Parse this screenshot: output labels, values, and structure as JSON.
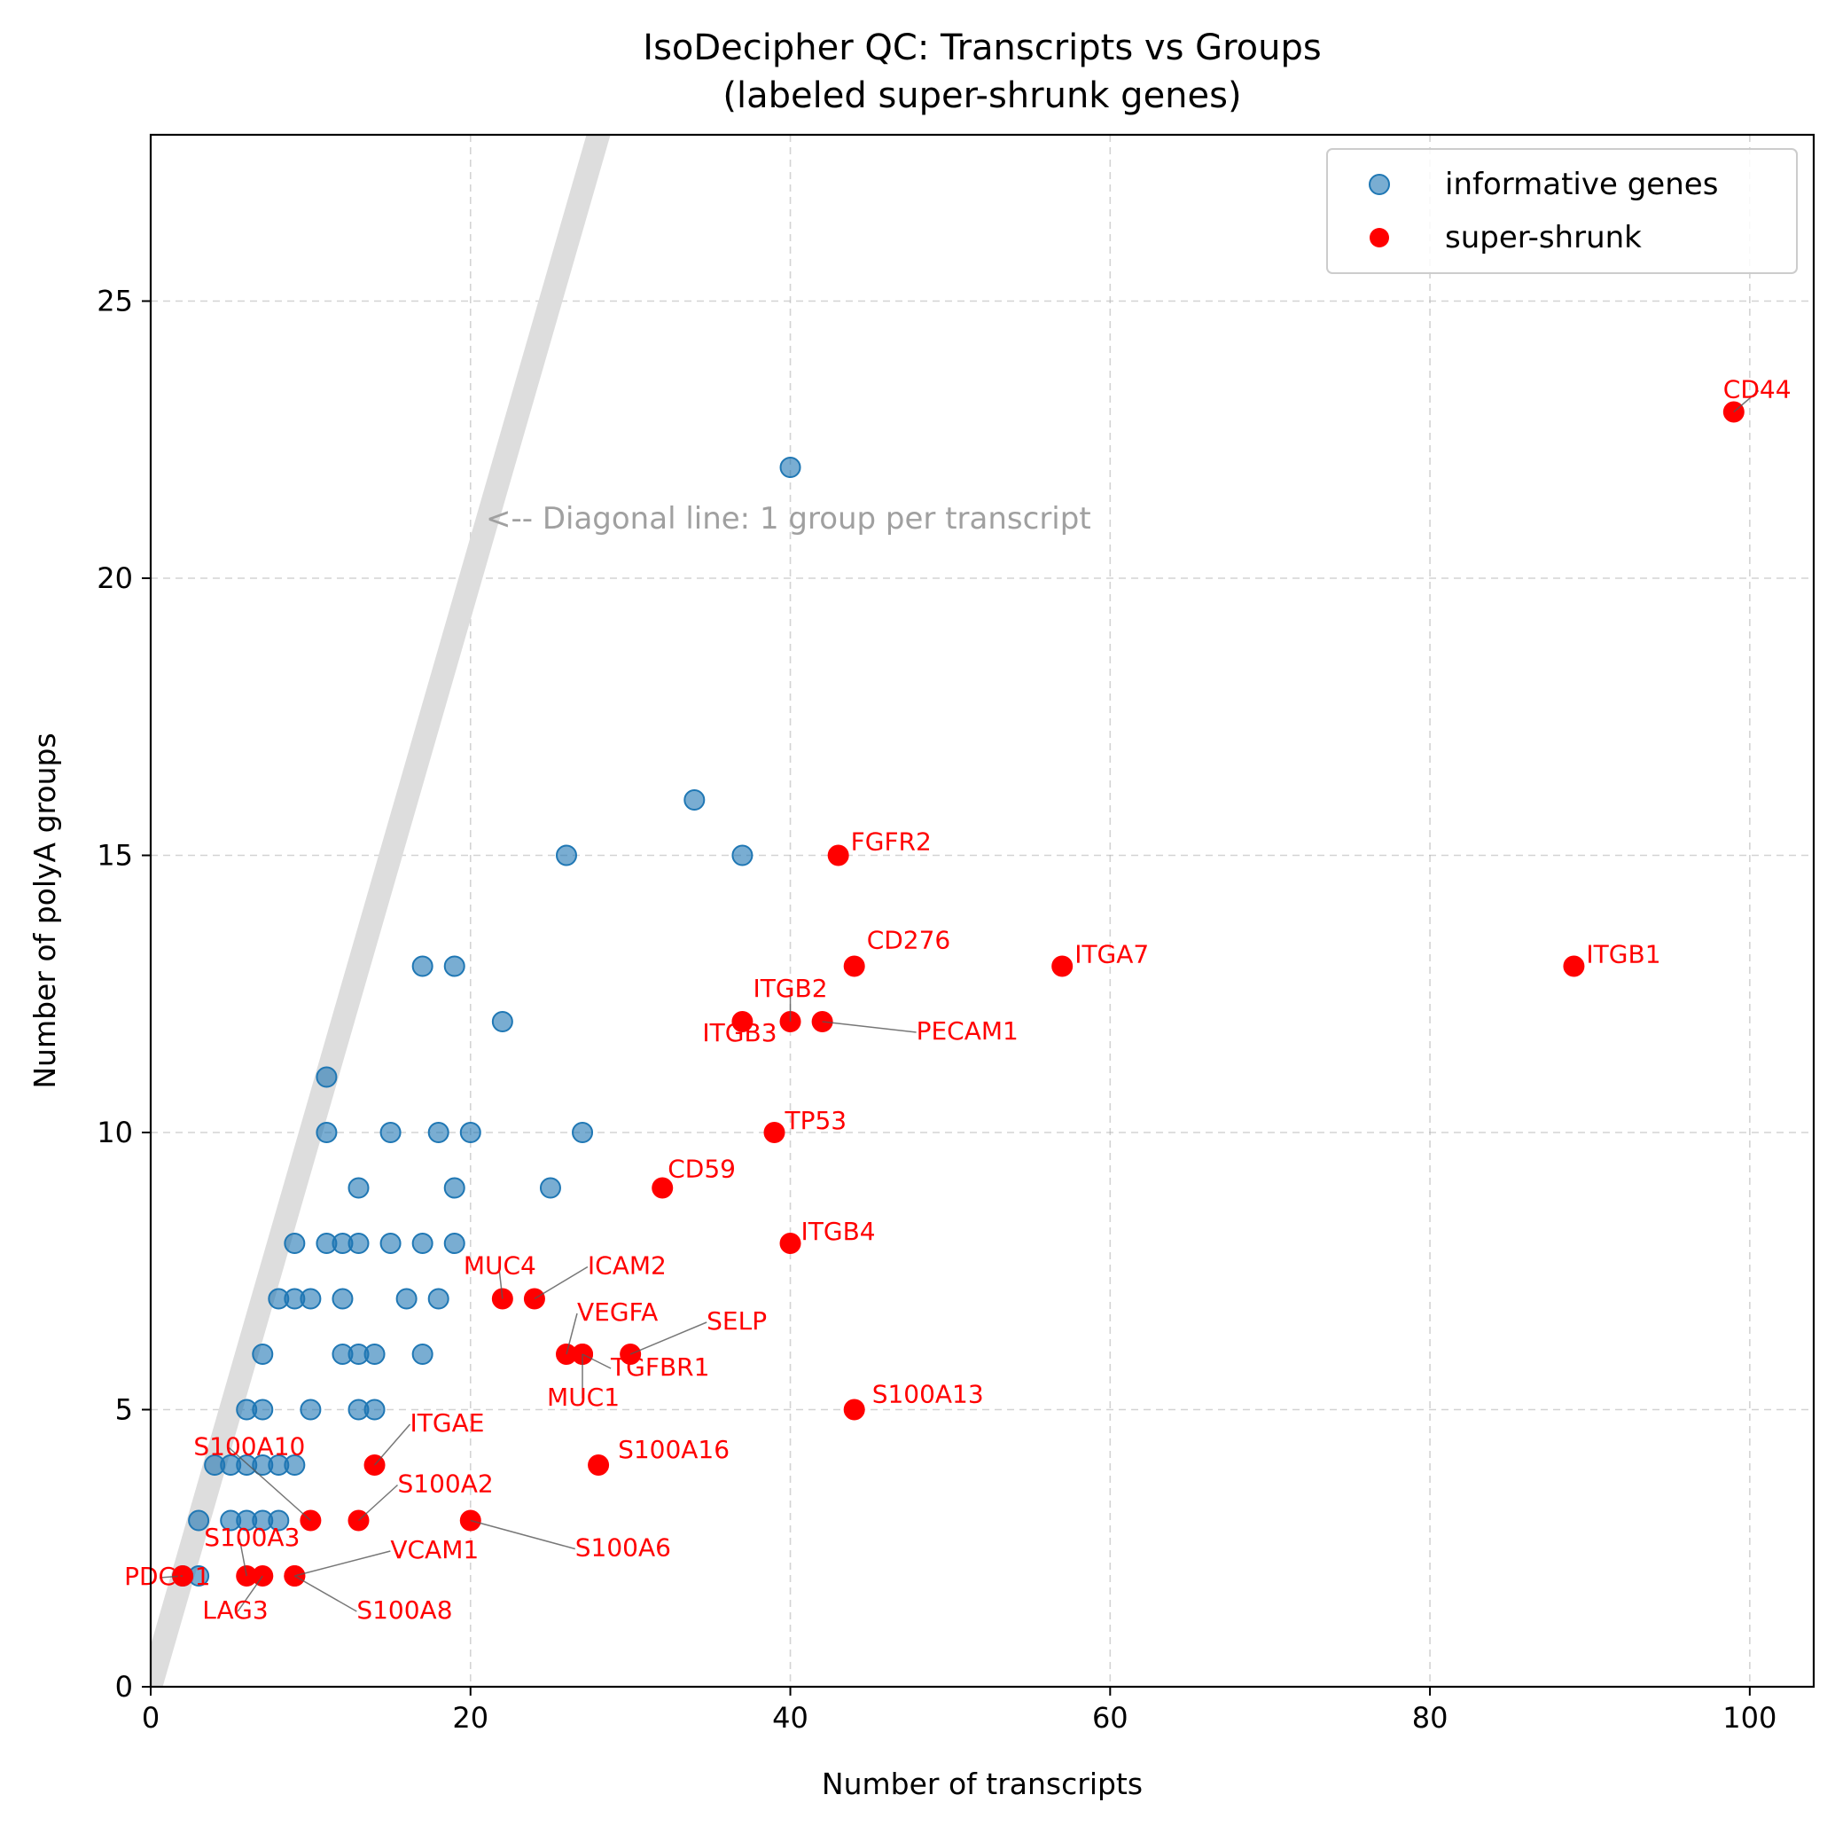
{
  "chart_data": {
    "type": "scatter",
    "title_line1": "IsoDecipher QC: Transcripts vs Groups",
    "title_line2": "(labeled super-shrunk genes)",
    "xlabel": "Number of transcripts",
    "ylabel": "Number of polyA groups",
    "xlim": [
      0,
      104
    ],
    "ylim": [
      0,
      28
    ],
    "xticks": [
      0,
      20,
      40,
      60,
      80,
      100
    ],
    "yticks": [
      0,
      5,
      10,
      15,
      20,
      25
    ],
    "grid": true,
    "legend_position": "top-right",
    "diagonal_annotation": "<-- Diagonal line: 1 group per transcript",
    "diagonal_line": {
      "slope": 1,
      "intercept": 0,
      "color": "#dddddd"
    },
    "colors": {
      "informative": "#1f77b4",
      "super_shrunk": "#ff0000"
    },
    "series": [
      {
        "name": "informative genes",
        "points": [
          [
            40,
            22
          ],
          [
            34,
            16
          ],
          [
            26,
            15
          ],
          [
            37,
            15
          ],
          [
            17,
            13
          ],
          [
            19,
            13
          ],
          [
            22,
            12
          ],
          [
            11,
            11
          ],
          [
            11,
            10
          ],
          [
            15,
            10
          ],
          [
            18,
            10
          ],
          [
            20,
            10
          ],
          [
            27,
            10
          ],
          [
            13,
            9
          ],
          [
            19,
            9
          ],
          [
            25,
            9
          ],
          [
            9,
            8
          ],
          [
            11,
            8
          ],
          [
            12,
            8
          ],
          [
            13,
            8
          ],
          [
            15,
            8
          ],
          [
            17,
            8
          ],
          [
            19,
            8
          ],
          [
            8,
            7
          ],
          [
            9,
            7
          ],
          [
            10,
            7
          ],
          [
            12,
            7
          ],
          [
            16,
            7
          ],
          [
            18,
            7
          ],
          [
            7,
            6
          ],
          [
            12,
            6
          ],
          [
            13,
            6
          ],
          [
            14,
            6
          ],
          [
            17,
            6
          ],
          [
            6,
            5
          ],
          [
            7,
            5
          ],
          [
            10,
            5
          ],
          [
            13,
            5
          ],
          [
            14,
            5
          ],
          [
            4,
            4
          ],
          [
            5,
            4
          ],
          [
            6,
            4
          ],
          [
            7,
            4
          ],
          [
            8,
            4
          ],
          [
            9,
            4
          ],
          [
            3,
            3
          ],
          [
            5,
            3
          ],
          [
            6,
            3
          ],
          [
            7,
            3
          ],
          [
            8,
            3
          ],
          [
            2,
            2
          ],
          [
            3,
            2
          ]
        ]
      },
      {
        "name": "super-shrunk",
        "points": [
          {
            "x": 99,
            "y": 23,
            "label": "CD44"
          },
          {
            "x": 43,
            "y": 15,
            "label": "FGFR2"
          },
          {
            "x": 44,
            "y": 13,
            "label": "CD276"
          },
          {
            "x": 57,
            "y": 13,
            "label": "ITGA7"
          },
          {
            "x": 89,
            "y": 13,
            "label": "ITGB1"
          },
          {
            "x": 40,
            "y": 12,
            "label": "ITGB2"
          },
          {
            "x": 37,
            "y": 12,
            "label": "ITGB3"
          },
          {
            "x": 42,
            "y": 12,
            "label": "PECAM1"
          },
          {
            "x": 39,
            "y": 10,
            "label": "TP53"
          },
          {
            "x": 32,
            "y": 9,
            "label": "CD59"
          },
          {
            "x": 40,
            "y": 8,
            "label": "ITGB4"
          },
          {
            "x": 22,
            "y": 7,
            "label": "MUC4"
          },
          {
            "x": 24,
            "y": 7,
            "label": "ICAM2"
          },
          {
            "x": 26,
            "y": 6,
            "label": "VEGFA"
          },
          {
            "x": 30,
            "y": 6,
            "label": "SELP"
          },
          {
            "x": 27,
            "y": 6,
            "label": "TGFBR1"
          },
          {
            "x": 27,
            "y": 6,
            "label": "MUC1"
          },
          {
            "x": 44,
            "y": 5,
            "label": "S100A13"
          },
          {
            "x": 14,
            "y": 4,
            "label": "ITGAE"
          },
          {
            "x": 28,
            "y": 4,
            "label": "S100A16"
          },
          {
            "x": 10,
            "y": 3,
            "label": "S100A10"
          },
          {
            "x": 13,
            "y": 3,
            "label": "S100A2"
          },
          {
            "x": 20,
            "y": 3,
            "label": "S100A6"
          },
          {
            "x": 6,
            "y": 2,
            "label": "S100A3"
          },
          {
            "x": 9,
            "y": 2,
            "label": "VCAM1"
          },
          {
            "x": 2,
            "y": 2,
            "label": "PDCD1"
          },
          {
            "x": 7,
            "y": 2,
            "label": "LAG3"
          },
          {
            "x": 9,
            "y": 2,
            "label": "S100A8"
          }
        ]
      }
    ]
  }
}
